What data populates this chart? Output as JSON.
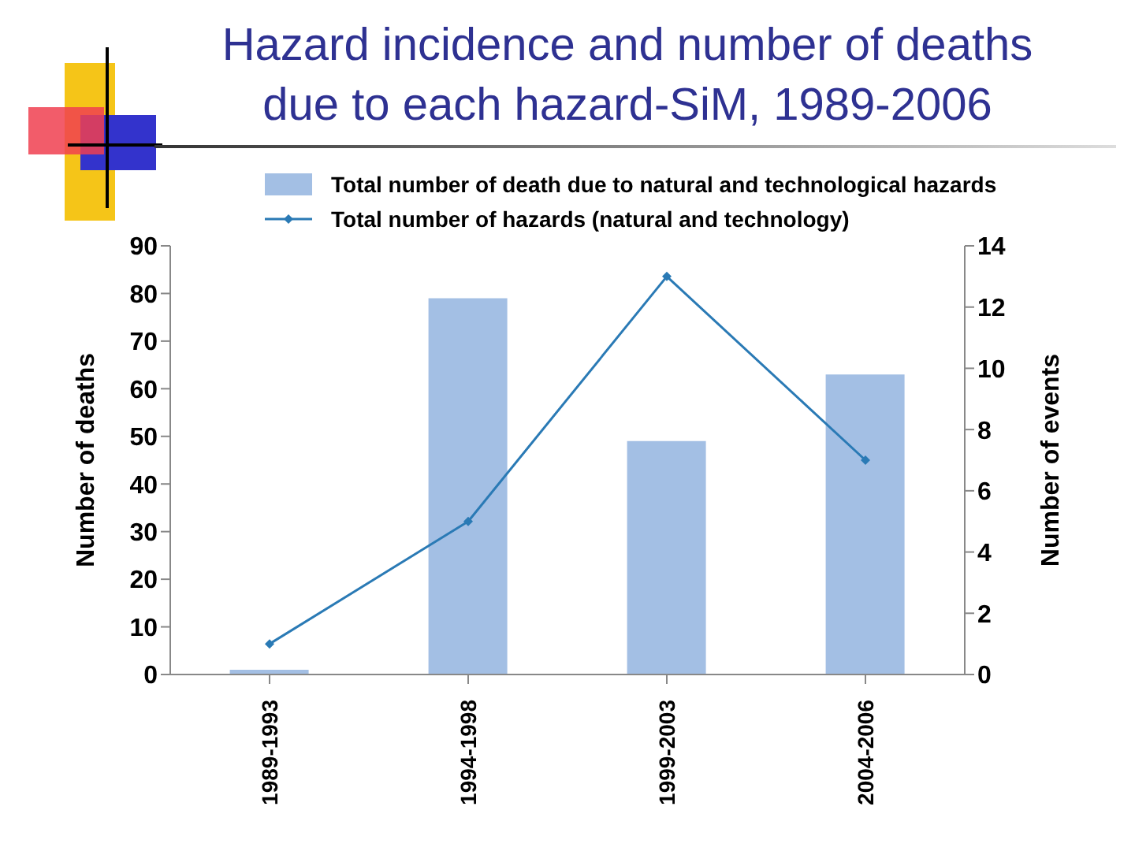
{
  "chart_data": {
    "type": "bar",
    "title": "Hazard incidence and number of deaths due to each hazard-SiM, 1989-2006",
    "ylabel": "Number of deaths",
    "y2label": "Number of events",
    "categories": [
      "1989-1993",
      "1994-1998",
      "1999-2003",
      "2004-2006"
    ],
    "series": [
      {
        "name": "Total number of death due to natural and technological hazards",
        "color": "#a3bfe4",
        "values": [
          1,
          79,
          49,
          63
        ]
      },
      {
        "name": "Total number of hazards (natural and technology)",
        "type": "line",
        "axis": "y2",
        "color": "#2a7ab5",
        "marker": "diamond",
        "values": [
          1,
          5,
          13,
          7
        ]
      }
    ],
    "ylim": [
      0,
      90
    ],
    "yticks": [
      0,
      10,
      20,
      30,
      40,
      50,
      60,
      70,
      80,
      90
    ],
    "y2lim": [
      0,
      14
    ],
    "y2ticks": [
      0,
      2,
      4,
      6,
      8,
      10,
      12,
      14
    ],
    "grid": false,
    "legend": "top"
  }
}
